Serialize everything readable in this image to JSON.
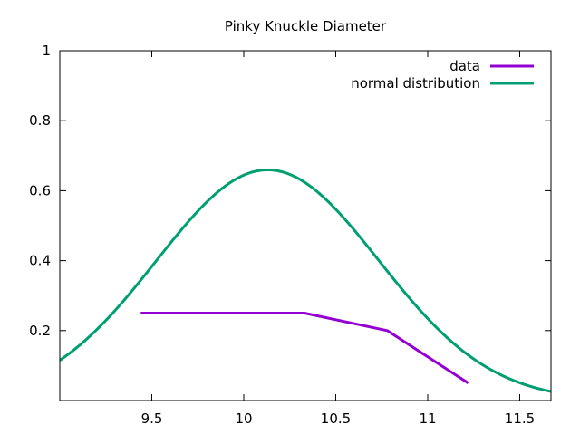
{
  "chart_data": {
    "type": "line",
    "title": "Pinky Knuckle Diameter",
    "xlabel": "",
    "ylabel": "",
    "xlim": [
      9.0,
      11.67
    ],
    "ylim": [
      0.0,
      1.0
    ],
    "x_ticks": [
      9.5,
      10,
      10.5,
      11,
      11.5
    ],
    "x_tick_labels": [
      "9.5",
      "10",
      "10.5",
      "11",
      "11.5"
    ],
    "y_ticks": [
      0.2,
      0.4,
      0.6,
      0.8,
      1.0
    ],
    "y_tick_labels": [
      "0.2",
      "0.4",
      "0.6",
      "0.8",
      "1"
    ],
    "grid": false,
    "legend_position": "top-right",
    "series": [
      {
        "name": "data",
        "color": "#9400d3",
        "style": "polyline",
        "x": [
          9.44,
          10.33,
          10.78,
          11.22
        ],
        "y": [
          0.25,
          0.25,
          0.2,
          0.05
        ]
      },
      {
        "name": "normal distribution",
        "color": "#009e73",
        "style": "normal-curve",
        "mean": 10.13,
        "stddev": 0.605
      }
    ]
  }
}
